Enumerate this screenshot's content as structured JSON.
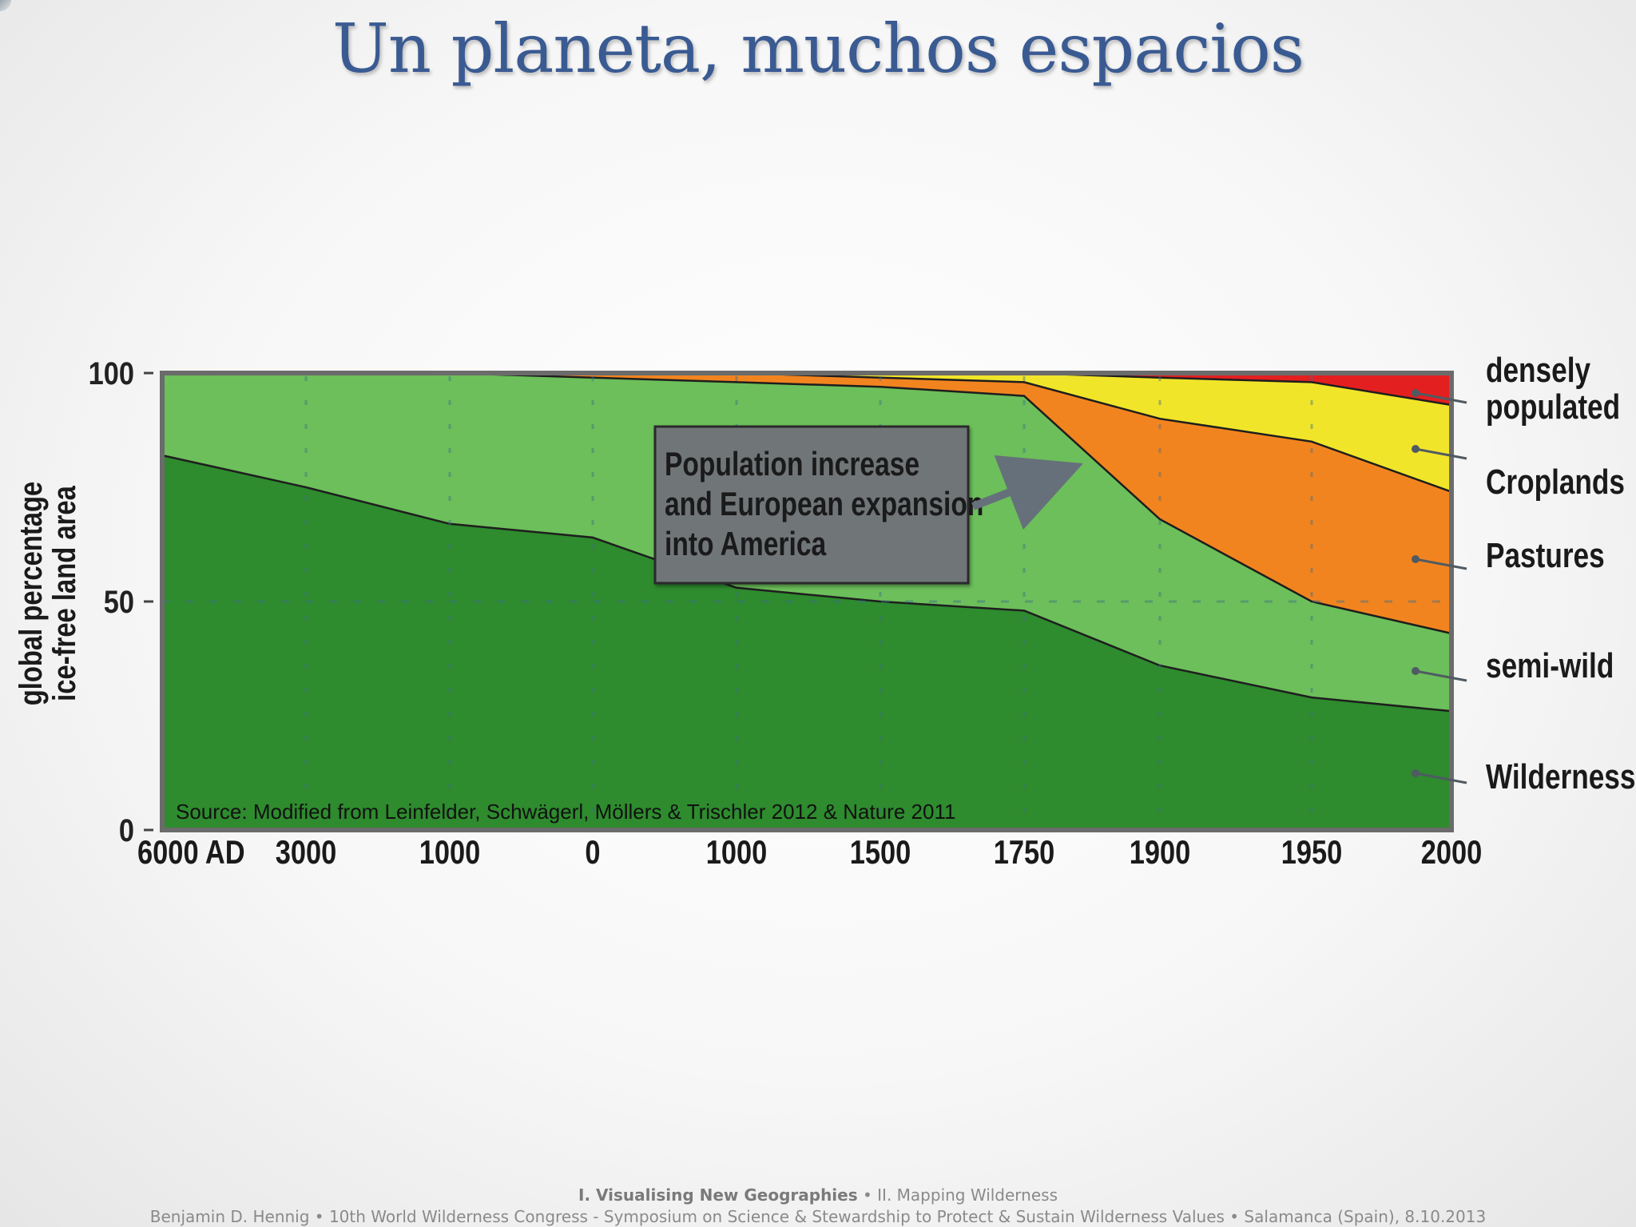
{
  "slide": {
    "title": "Un planeta, muchos espacios",
    "footer": {
      "section_bold": "I. Visualising New Geographies",
      "separator": "•",
      "section_normal": "II. Mapping Wilderness",
      "credits": "Benjamin D. Hennig • 10th World Wilderness Congress - Symposium on Science & Stewardship to Protect & Sustain Wilderness Values • Salamanca (Spain), 8.10.2013"
    }
  },
  "chart_data": {
    "type": "area",
    "stacked": true,
    "title": "",
    "ylabel": [
      "global percentage",
      "ice-free land area"
    ],
    "xlabel": "",
    "ylim": [
      0,
      100
    ],
    "yticks": [
      "0",
      "50",
      "100"
    ],
    "x": [
      "6000 AD",
      "3000",
      "1000",
      "0",
      "1000",
      "1500",
      "1750",
      "1900",
      "1950",
      "2000"
    ],
    "series": [
      {
        "name": "Wilderness",
        "color": "#2e8b2e",
        "values": [
          82,
          75,
          67,
          64,
          53,
          50,
          48,
          36,
          29,
          26
        ]
      },
      {
        "name": "semi-wild",
        "color": "#6cbf5a",
        "values": [
          18,
          25,
          33,
          35,
          45,
          47,
          47,
          32,
          21,
          17
        ]
      },
      {
        "name": "Pastures",
        "color": "#f2841f",
        "values": [
          0,
          0,
          0,
          1,
          2,
          2,
          3,
          22,
          35,
          31
        ]
      },
      {
        "name": "Croplands",
        "color": "#f1e52a",
        "values": [
          0,
          0,
          0,
          0,
          0,
          1,
          2,
          9,
          13,
          19
        ]
      },
      {
        "name": "densely populated",
        "color": "#e41f1f",
        "values": [
          0,
          0,
          0,
          0,
          0,
          0,
          0,
          1,
          2,
          7
        ]
      }
    ],
    "legend": [
      "densely\npopulated",
      "Croplands",
      "Pastures",
      "semi-wild",
      "Wilderness"
    ],
    "legend_placement": "right",
    "grid": "dashed",
    "annotation": {
      "text": [
        "Population increase",
        "and European expansion",
        "into America"
      ],
      "arrow": true
    },
    "source": "Source: Modified from Leinfelder, Schwägerl, Möllers & Trischler 2012 & Nature 2011"
  }
}
